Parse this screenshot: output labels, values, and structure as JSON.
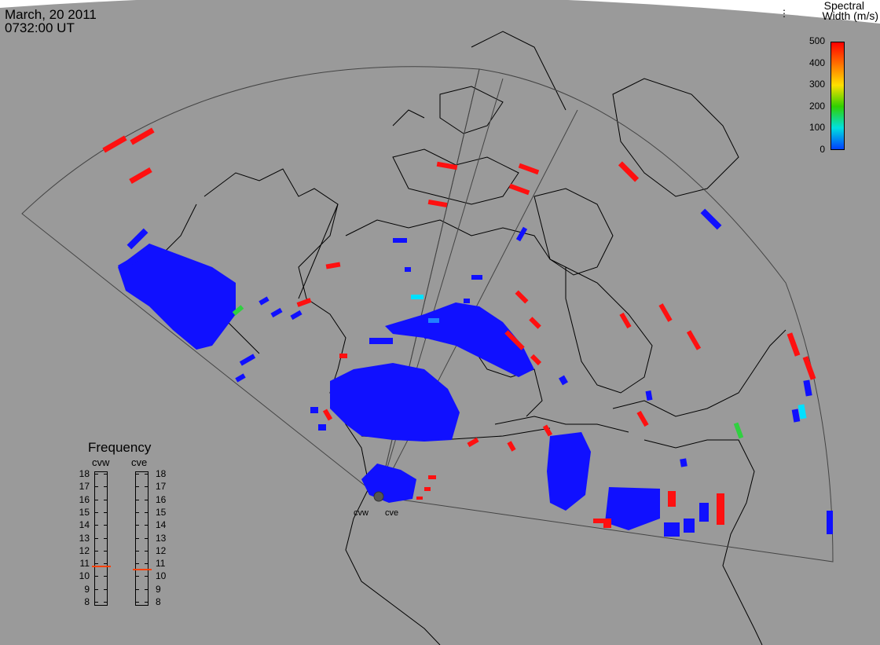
{
  "header": {
    "date": "March, 20 2011",
    "time": "0732:00 UT"
  },
  "colorbar": {
    "title_line1": "Spectral",
    "title_line2": "Width (m/s)",
    "ticks": [
      "500",
      "400",
      "300",
      "200",
      "100",
      "0"
    ],
    "colors": [
      "#ff0000",
      "#ff7000",
      "#ffe000",
      "#30d000",
      "#00e0e0",
      "#0040ff"
    ]
  },
  "map": {
    "background": "#9a9a9a",
    "boundary_color": "#000000",
    "fov_color": "#444444",
    "radars": [
      {
        "id": "cvw",
        "label": "cvw"
      },
      {
        "id": "cve",
        "label": "cve"
      }
    ]
  },
  "frequency_panel": {
    "title": "Frequency",
    "left_label": "cvw",
    "right_label": "cve",
    "ticks": [
      "18",
      "17",
      "16",
      "15",
      "14",
      "13",
      "12",
      "11",
      "10",
      "9",
      "8"
    ],
    "left_value": 10.8,
    "right_value": 10.6,
    "marker_color": "#ff4000"
  },
  "scatter_colors": {
    "blue": "#1010ff",
    "red": "#ff1010",
    "cyan": "#00e0ff",
    "green": "#30d040",
    "lightblue": "#2080ff"
  }
}
